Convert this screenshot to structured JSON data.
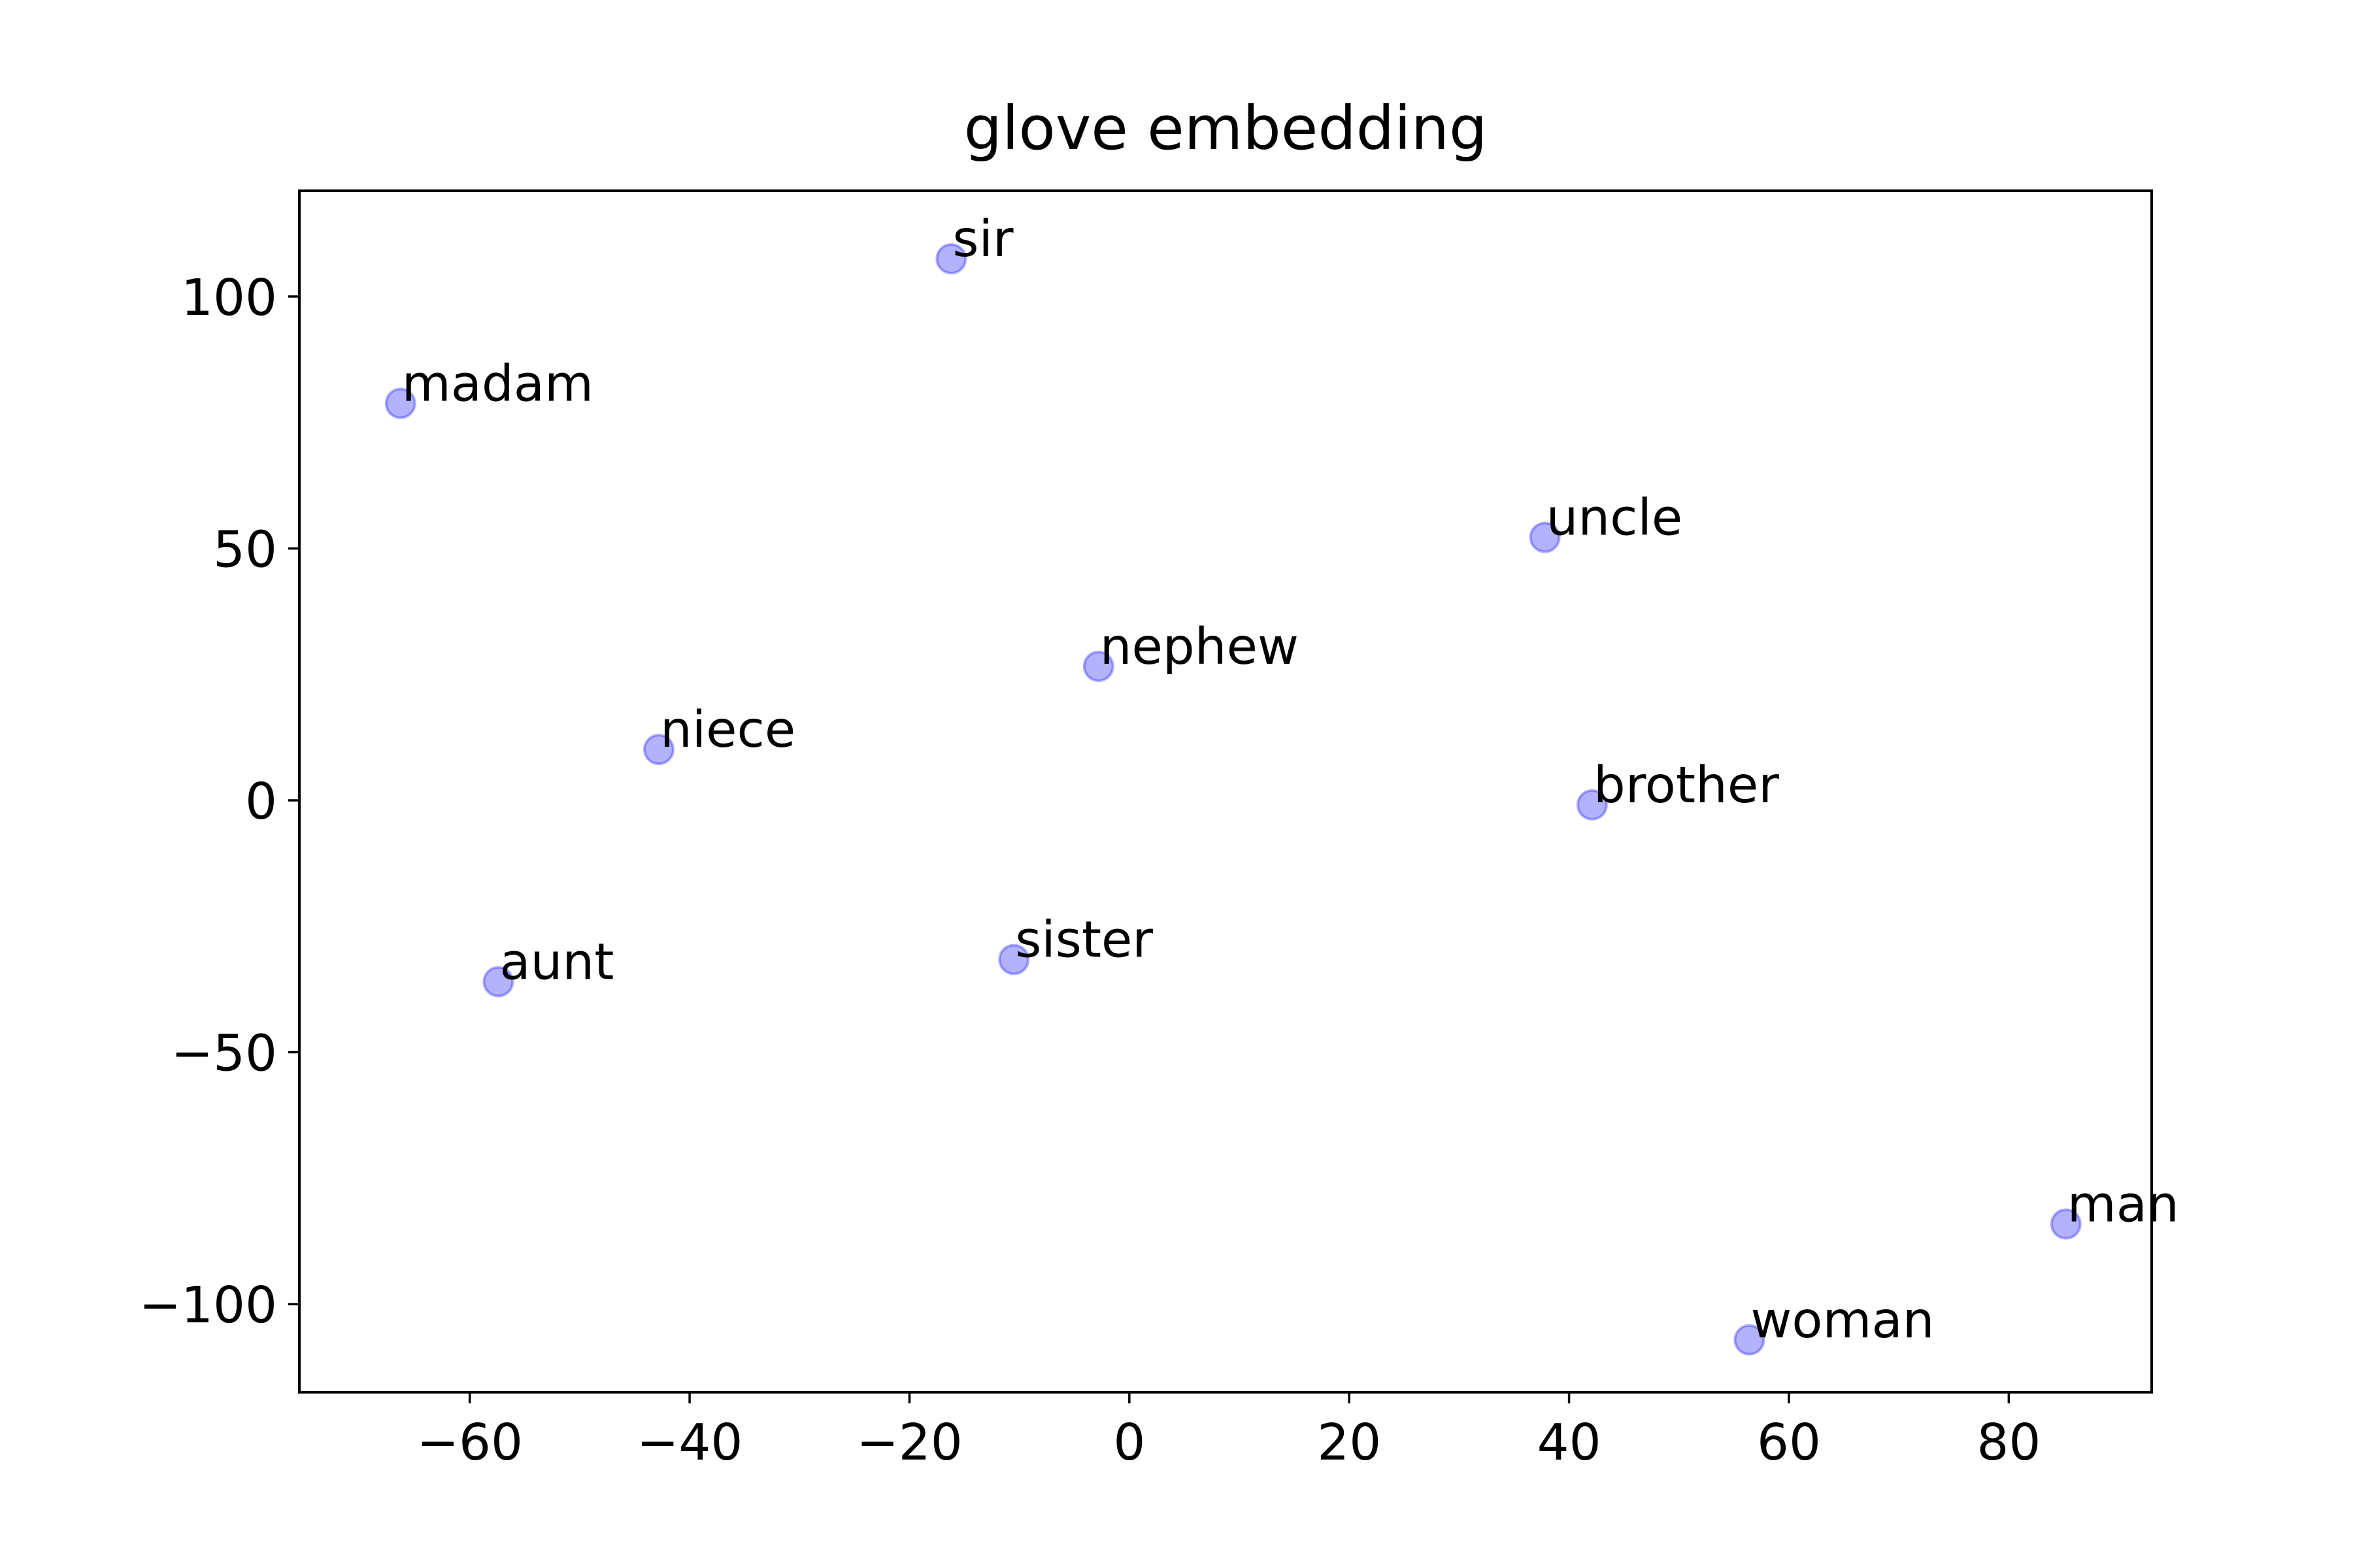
{
  "chart_data": {
    "type": "scatter",
    "title": "glove embedding",
    "xlabel": "",
    "ylabel": "",
    "xlim": [
      -75.5,
      93.0
    ],
    "ylim": [
      -117.5,
      121.0
    ],
    "xticks": [
      -60,
      -40,
      -20,
      0,
      20,
      40,
      60,
      80
    ],
    "yticks": [
      -100,
      -50,
      0,
      50,
      100
    ],
    "xtick_labels": [
      "−60",
      "−40",
      "−20",
      "0",
      "20",
      "40",
      "60",
      "80"
    ],
    "ytick_labels": [
      "−100",
      "−50",
      "0",
      "50",
      "100"
    ],
    "grid": false,
    "marker_color": "#0000ff",
    "marker_alpha": 0.3,
    "points": [
      {
        "label": "sir",
        "x": -16.2,
        "y": 107.5
      },
      {
        "label": "madam",
        "x": -66.3,
        "y": 78.8
      },
      {
        "label": "uncle",
        "x": 37.8,
        "y": 52.2
      },
      {
        "label": "nephew",
        "x": -2.8,
        "y": 26.6
      },
      {
        "label": "niece",
        "x": -42.8,
        "y": 10.1
      },
      {
        "label": "brother",
        "x": 42.1,
        "y": -0.9
      },
      {
        "label": "aunt",
        "x": -57.4,
        "y": -36.0
      },
      {
        "label": "sister",
        "x": -10.5,
        "y": -31.6
      },
      {
        "label": "man",
        "x": 85.2,
        "y": -84.1
      },
      {
        "label": "woman",
        "x": 56.4,
        "y": -107.1
      }
    ]
  }
}
